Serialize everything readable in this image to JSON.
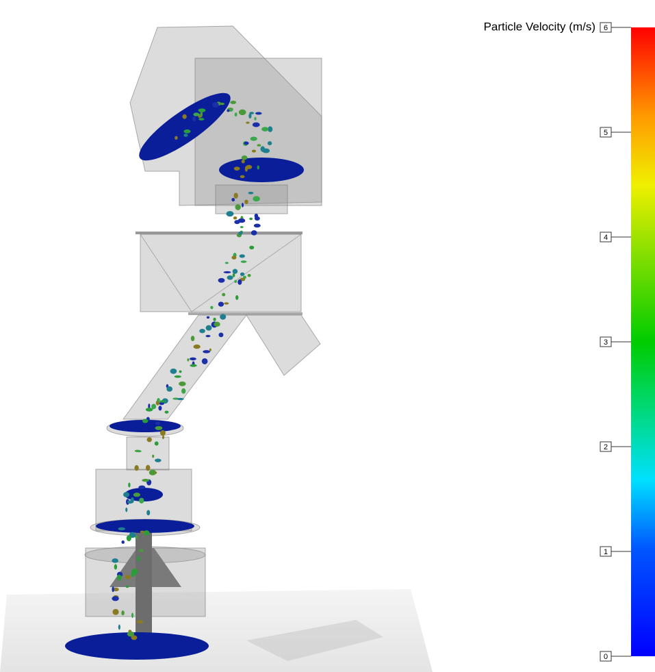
{
  "colorbar": {
    "title": "Particle Velocity (m/s)",
    "lim": [
      0,
      6
    ],
    "ticks": [
      0,
      1,
      2,
      3,
      4,
      5,
      6
    ]
  }
}
